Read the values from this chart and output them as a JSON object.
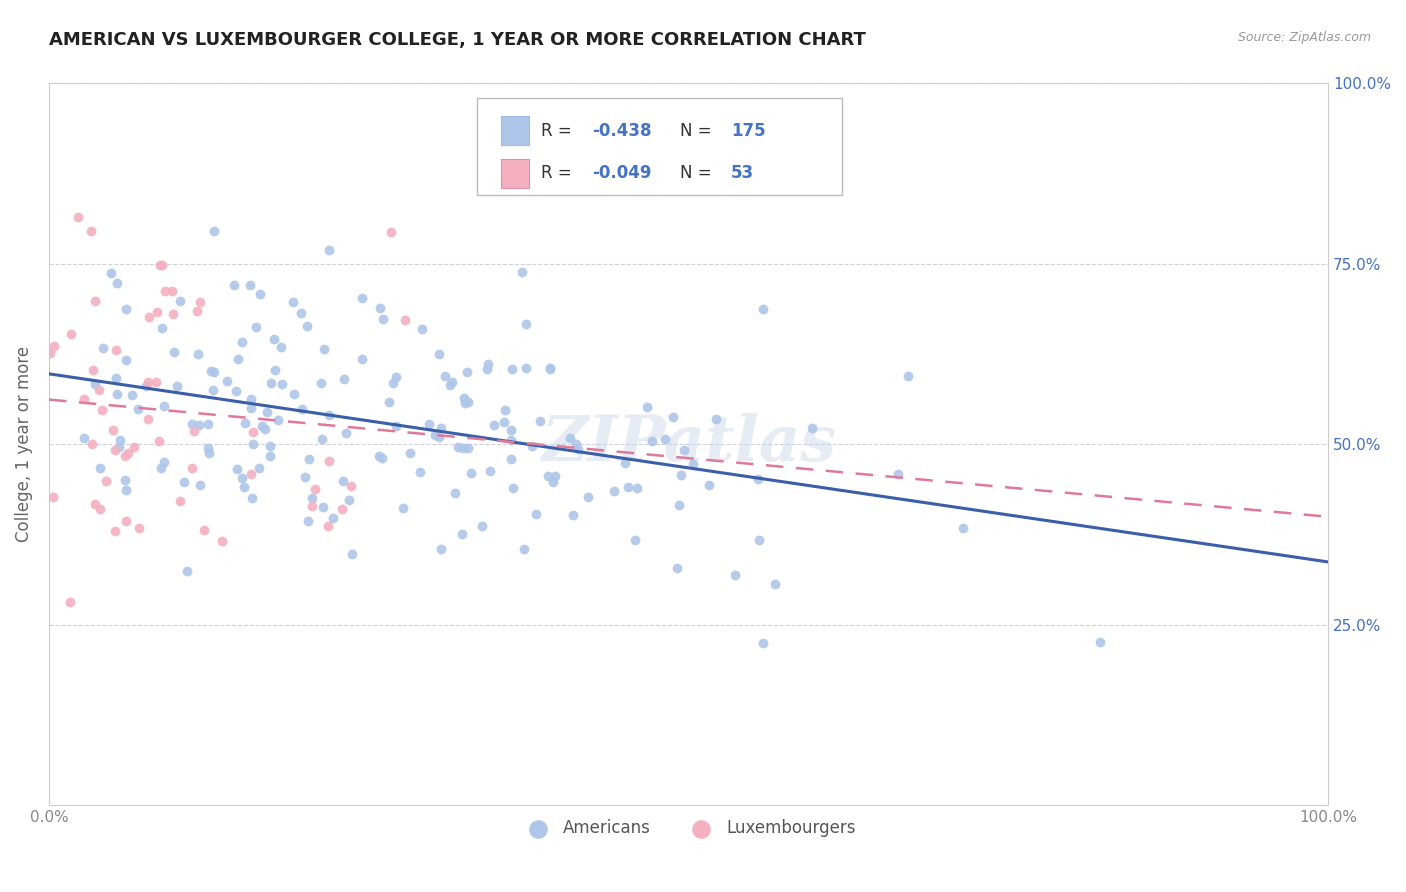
{
  "title": "AMERICAN VS LUXEMBOURGER COLLEGE, 1 YEAR OR MORE CORRELATION CHART",
  "source": "Source: ZipAtlas.com",
  "ylabel": "College, 1 year or more",
  "xlim": [
    0.0,
    1.0
  ],
  "ylim": [
    0.0,
    1.0
  ],
  "american_R": -0.438,
  "american_N": 175,
  "luxembourger_R": -0.049,
  "luxembourger_N": 53,
  "american_color": "#aec6e8",
  "luxembourger_color": "#f4b0c0",
  "american_line_color": "#3a5fa8",
  "luxembourger_line_color": "#e07898",
  "watermark": "ZIPatlas",
  "background_color": "#ffffff",
  "grid_color": "#d0d0dd",
  "legend_label_americans": "Americans",
  "legend_label_luxembourgers": "Luxembourgers",
  "am_intercept": 0.585,
  "am_slope": -0.21,
  "lu_intercept": 0.535,
  "lu_slope": -0.06,
  "am_seed": 42,
  "lu_seed": 77
}
